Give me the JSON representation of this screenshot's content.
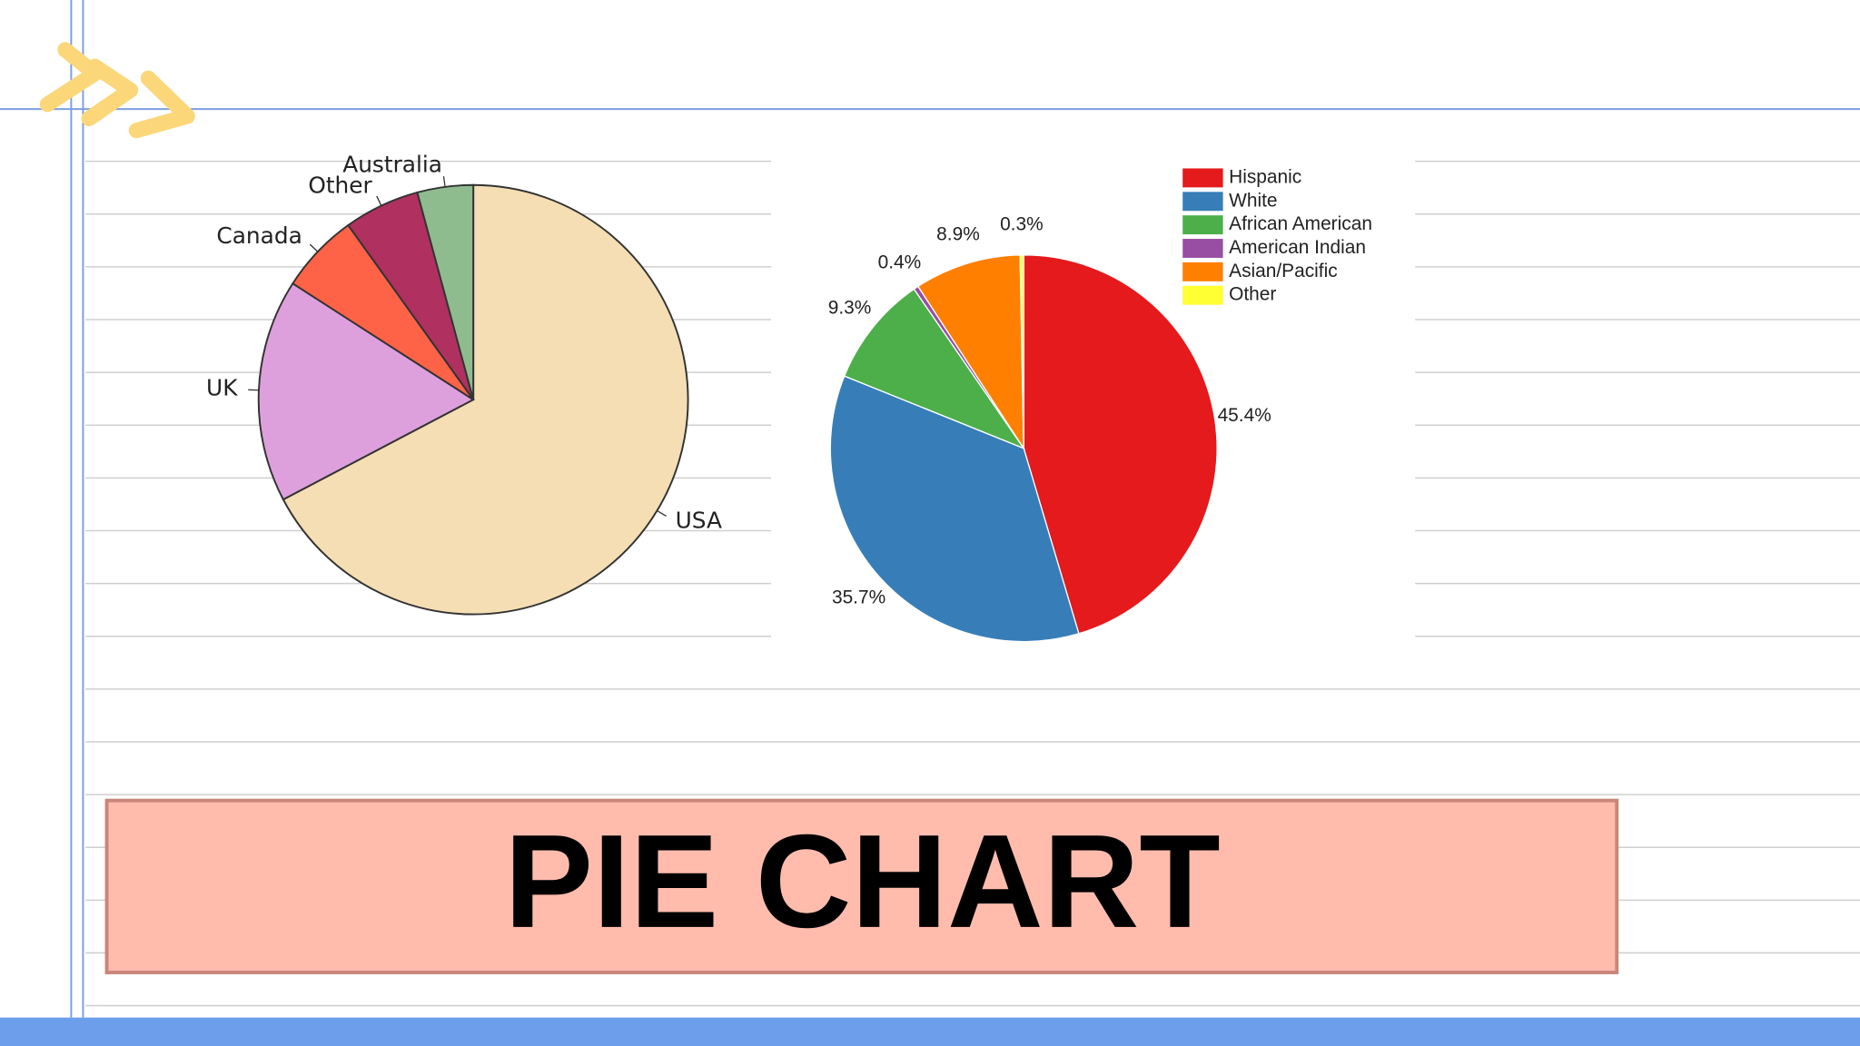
{
  "slide": {
    "title": "PIE CHART"
  },
  "chart_data": [
    {
      "type": "pie",
      "categories": [
        "USA",
        "UK",
        "Canada",
        "Other",
        "Australia"
      ],
      "values": [
        67.3,
        16.8,
        6.0,
        5.7,
        4.2
      ],
      "colors": [
        "#f5deb3",
        "#dda0dd",
        "#ff6347",
        "#b03060",
        "#8fbc8f"
      ]
    },
    {
      "type": "pie",
      "categories": [
        "Hispanic",
        "White",
        "African American",
        "American Indian",
        "Asian/Pacific",
        "Other"
      ],
      "values": [
        45.4,
        35.7,
        9.3,
        0.4,
        8.9,
        0.3
      ],
      "value_labels": [
        "45.4%",
        "35.7%",
        "9.3%",
        "0.4%",
        "8.9%",
        "0.3%"
      ],
      "colors": [
        "#e41a1c",
        "#377eb8",
        "#4daf4a",
        "#984ea3",
        "#ff7f00",
        "#ffff33"
      ],
      "legend": "top-right"
    }
  ]
}
